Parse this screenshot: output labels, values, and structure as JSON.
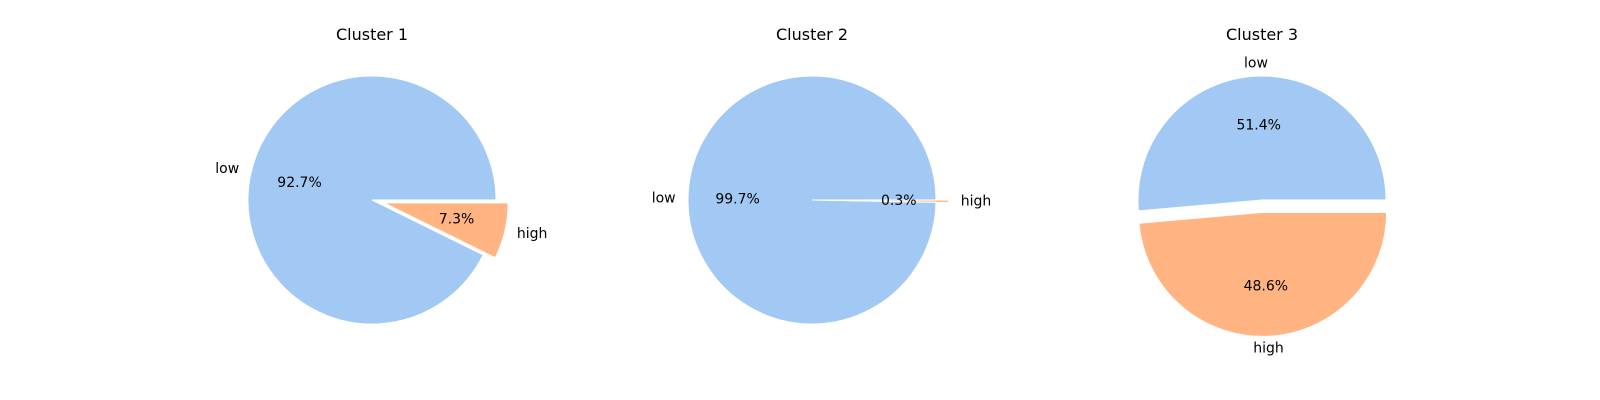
{
  "chart_data": [
    {
      "type": "pie",
      "title": "Cluster 1",
      "slices": [
        {
          "label": "low",
          "value": 92.7,
          "pct_label": "92.7%",
          "color": "#a1c9f4",
          "exploded": false
        },
        {
          "label": "high",
          "value": 7.3,
          "pct_label": "7.3%",
          "color": "#ffb482",
          "exploded": true
        }
      ],
      "start_angle_deg": 0,
      "direction": "counterclockwise"
    },
    {
      "type": "pie",
      "title": "Cluster 2",
      "slices": [
        {
          "label": "low",
          "value": 99.7,
          "pct_label": "99.7%",
          "color": "#a1c9f4",
          "exploded": false
        },
        {
          "label": "high",
          "value": 0.3,
          "pct_label": "0.3%",
          "color": "#ffb482",
          "exploded": true
        }
      ],
      "start_angle_deg": 0,
      "direction": "counterclockwise"
    },
    {
      "type": "pie",
      "title": "Cluster 3",
      "slices": [
        {
          "label": "low",
          "value": 51.4,
          "pct_label": "51.4%",
          "color": "#a1c9f4",
          "exploded": false
        },
        {
          "label": "high",
          "value": 48.6,
          "pct_label": "48.6%",
          "color": "#ffb482",
          "exploded": true
        }
      ],
      "start_angle_deg": 0,
      "direction": "counterclockwise"
    }
  ]
}
